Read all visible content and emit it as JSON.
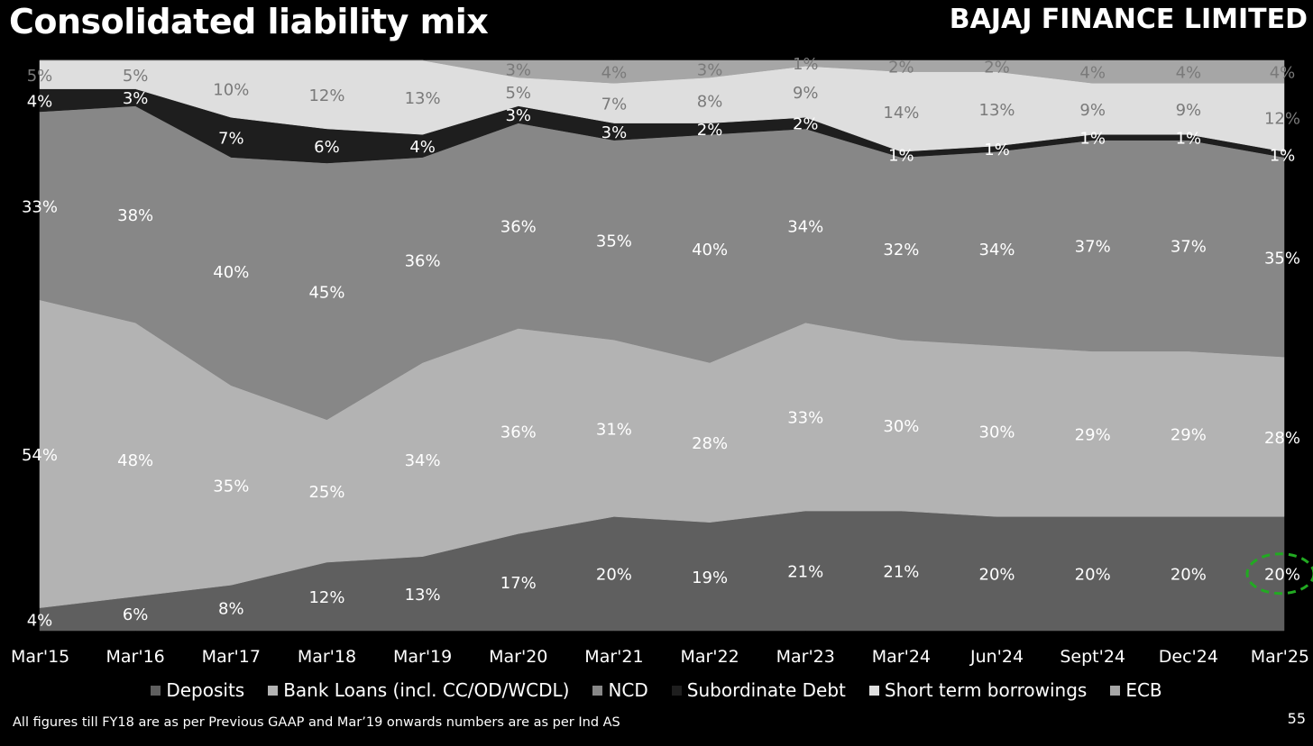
{
  "header": {
    "title": "Consolidated liability mix",
    "brand": "BAJAJ FINANCE LIMITED"
  },
  "footer": {
    "note": "All figures till FY18 are as per Previous GAAP and Mar’19 onwards numbers are as per Ind AS",
    "page_number": "55"
  },
  "colors": {
    "background": "#000000",
    "highlight": "#22aa22"
  },
  "chart_data": {
    "type": "area",
    "stacked": "percent",
    "categories": [
      "Mar'15",
      "Mar'16",
      "Mar'17",
      "Mar'18",
      "Mar'19",
      "Mar'20",
      "Mar'21",
      "Mar'22",
      "Mar'23",
      "Mar'24",
      "Jun'24",
      "Sept'24",
      "Dec'24",
      "Mar'25"
    ],
    "series": [
      {
        "name": "Deposits",
        "color": "#5f5f5f",
        "values": [
          4,
          6,
          8,
          12,
          13,
          17,
          20,
          19,
          21,
          21,
          20,
          20,
          20,
          20
        ],
        "labels": [
          "4%",
          "6%",
          "8%",
          "12%",
          "13%",
          "17%",
          "20%",
          "19%",
          "21%",
          "21%",
          "20%",
          "20%",
          "20%",
          "20%"
        ]
      },
      {
        "name": "Bank Loans (incl. CC/OD/WCDL)",
        "color": "#b3b3b3",
        "values": [
          54,
          48,
          35,
          25,
          34,
          36,
          31,
          28,
          33,
          30,
          30,
          29,
          29,
          28
        ],
        "labels": [
          "54%",
          "48%",
          "35%",
          "25%",
          "34%",
          "36%",
          "31%",
          "28%",
          "33%",
          "30%",
          "30%",
          "29%",
          "29%",
          "28%"
        ]
      },
      {
        "name": "NCD",
        "color": "#878787",
        "values": [
          33,
          38,
          40,
          45,
          36,
          36,
          35,
          40,
          34,
          32,
          34,
          37,
          37,
          35
        ],
        "labels": [
          "33%",
          "38%",
          "40%",
          "45%",
          "36%",
          "36%",
          "35%",
          "40%",
          "34%",
          "32%",
          "34%",
          "37%",
          "37%",
          "35%"
        ]
      },
      {
        "name": "Subordinate Debt",
        "color": "#1e1e1e",
        "values": [
          4,
          3,
          7,
          6,
          4,
          3,
          3,
          2,
          2,
          1,
          1,
          1,
          1,
          1
        ],
        "labels": [
          "4%",
          "3%",
          "7%",
          "6%",
          "4%",
          "3%",
          "3%",
          "2%",
          "2%",
          "1%",
          "1%",
          "1%",
          "1%",
          "1%"
        ]
      },
      {
        "name": "Short term borrowings",
        "color": "#dedede",
        "values": [
          5,
          5,
          10,
          12,
          13,
          5,
          7,
          8,
          9,
          14,
          13,
          9,
          9,
          12
        ],
        "labels": [
          "5%",
          "5%",
          "10%",
          "12%",
          "13%",
          "5%",
          "7%",
          "8%",
          "9%",
          "14%",
          "13%",
          "9%",
          "9%",
          "12%"
        ]
      },
      {
        "name": "ECB",
        "color": "#a6a6a6",
        "values": [
          0,
          0,
          0,
          0,
          0,
          3,
          4,
          3,
          1,
          2,
          2,
          4,
          4,
          4
        ],
        "labels": [
          "",
          "",
          "",
          "",
          "",
          "3%",
          "4%",
          "3%",
          "1%",
          "2%",
          "2%",
          "4%",
          "4%",
          "4%"
        ]
      }
    ],
    "highlight": {
      "category": "Mar'25",
      "series": "Deposits"
    },
    "ylim": [
      0,
      100
    ],
    "grid": false,
    "legend_position": "bottom"
  }
}
